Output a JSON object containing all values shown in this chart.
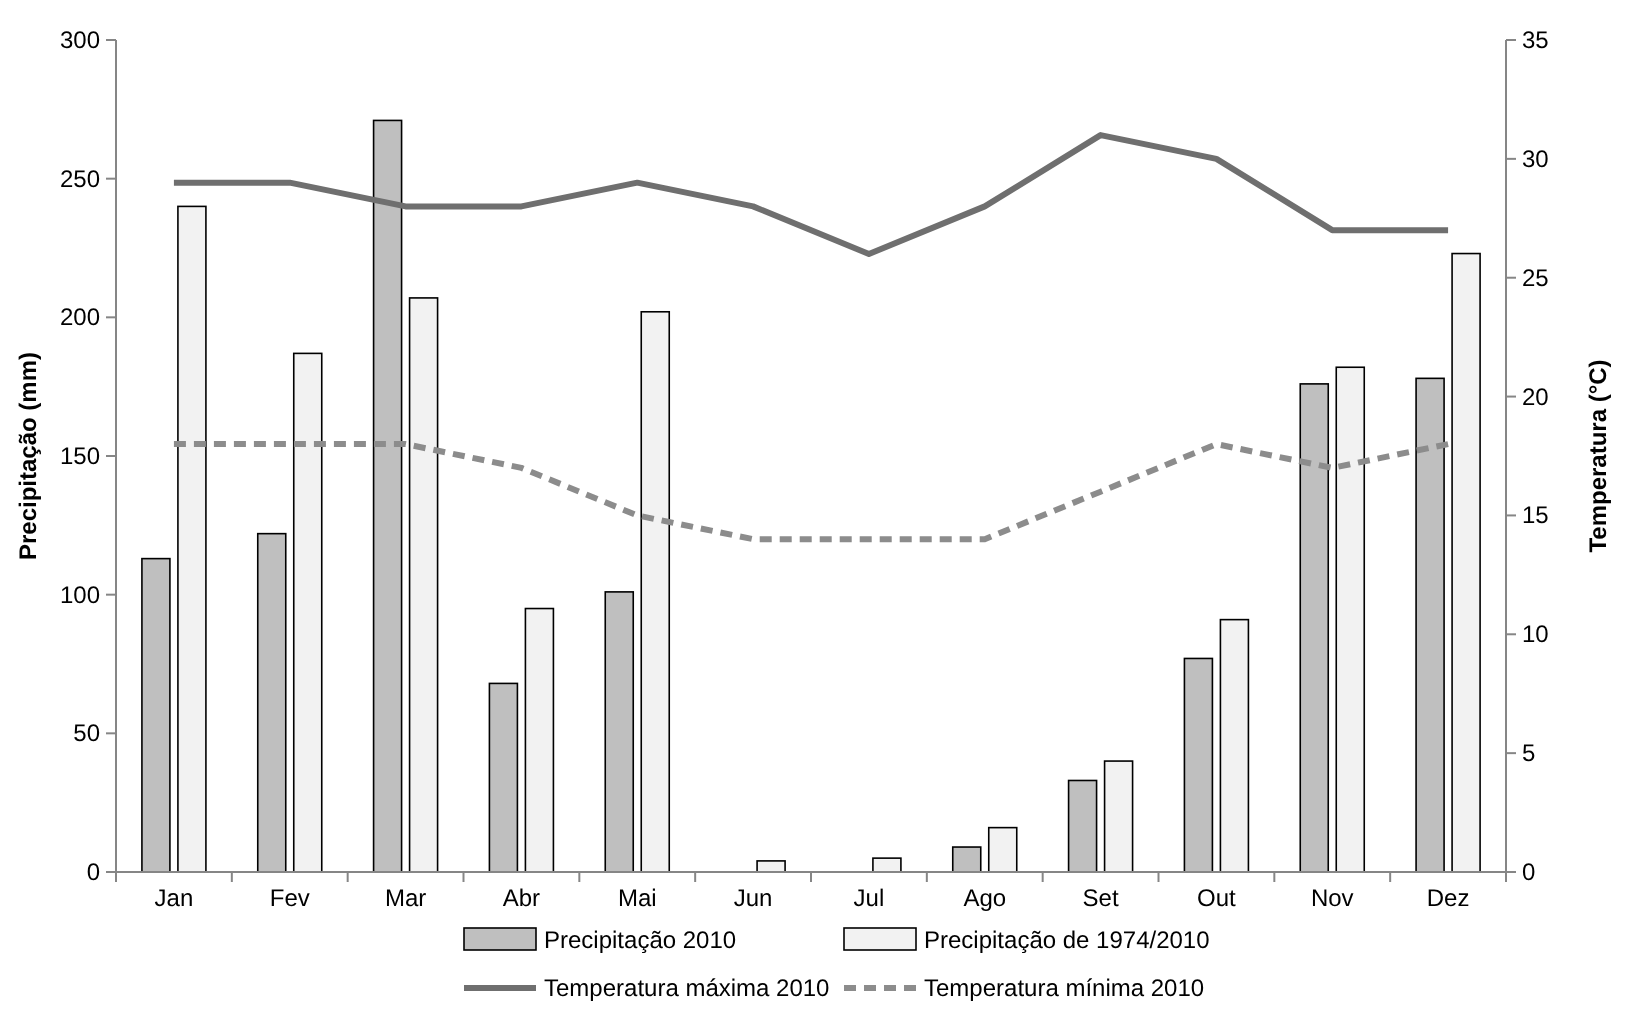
{
  "chart_data": {
    "type": "bar",
    "categories": [
      "Jan",
      "Fev",
      "Mar",
      "Abr",
      "Mai",
      "Jun",
      "Jul",
      "Ago",
      "Set",
      "Out",
      "Nov",
      "Dez"
    ],
    "ylabel": "Precipitação (mm)",
    "y2label": "Temperatura (°C)",
    "ylim": [
      0,
      300
    ],
    "yticks": [
      0,
      50,
      100,
      150,
      200,
      250,
      300
    ],
    "y2lim": [
      0,
      35
    ],
    "y2ticks": [
      0,
      5,
      10,
      15,
      20,
      25,
      30,
      35
    ],
    "grid": false,
    "legend": "bottom",
    "series": [
      {
        "name": "Precipitação 2010",
        "color": "#bfbfbf",
        "values": [
          113,
          122,
          271,
          68,
          101,
          0,
          0,
          9,
          33,
          77,
          176,
          178
        ]
      },
      {
        "name": "Precipitação de 1974/2010",
        "color": "#f2f2f2",
        "values": [
          240,
          187,
          207,
          95,
          202,
          4,
          5,
          16,
          40,
          91,
          182,
          223
        ]
      },
      {
        "name": "Temperatura máxima 2010",
        "type": "line",
        "axis": "y2",
        "color": "#6f6f6f",
        "line_style": "solid",
        "values": [
          29,
          29,
          28,
          28,
          29,
          28,
          26,
          28,
          31,
          30,
          27,
          27
        ]
      },
      {
        "name": "Temperatura mínima 2010",
        "type": "line",
        "axis": "y2",
        "color": "#8c8c8c",
        "line_style": "dashed",
        "values": [
          18,
          18,
          18,
          17,
          15,
          14,
          14,
          14,
          16,
          18,
          17,
          18
        ]
      }
    ]
  }
}
